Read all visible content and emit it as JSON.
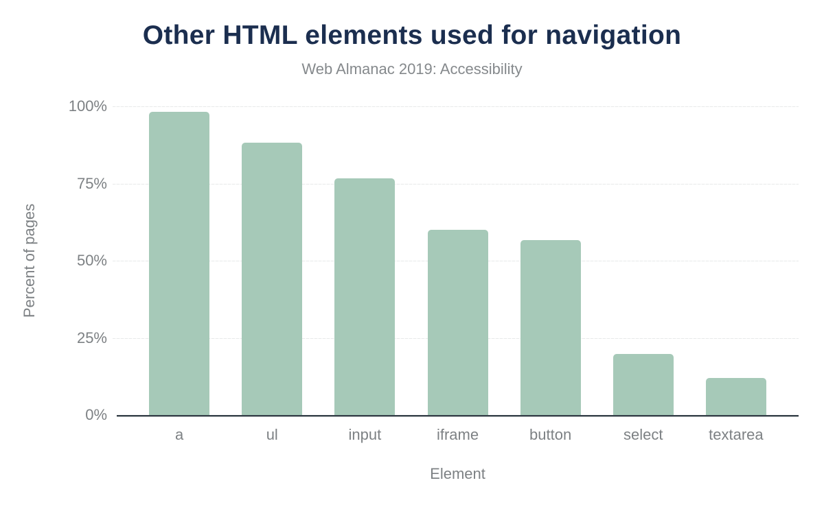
{
  "chart_data": {
    "type": "bar",
    "title": "Other HTML elements used for navigation",
    "subtitle": "Web Almanac 2019: Accessibility",
    "xlabel": "Element",
    "ylabel": "Percent of pages",
    "categories": [
      "a",
      "ul",
      "input",
      "iframe",
      "button",
      "select",
      "textarea"
    ],
    "values": [
      98.2,
      88.2,
      76.6,
      60.1,
      56.7,
      19.7,
      12.1
    ],
    "ylim": [
      0,
      100
    ],
    "yticks": [
      {
        "value": 0,
        "label": "0%"
      },
      {
        "value": 25,
        "label": "25%"
      },
      {
        "value": 50,
        "label": "50%"
      },
      {
        "value": 75,
        "label": "75%"
      },
      {
        "value": 100,
        "label": "100%"
      }
    ],
    "legend": "none",
    "grid": true,
    "colors": {
      "bar": "#a6c9b8",
      "title": "#1b2e4f",
      "subtitle": "#85898c",
      "labels": "#7d8184",
      "gridline": "#e7e9e9",
      "axis_line": "#333d46",
      "background": "#ffffff"
    }
  }
}
